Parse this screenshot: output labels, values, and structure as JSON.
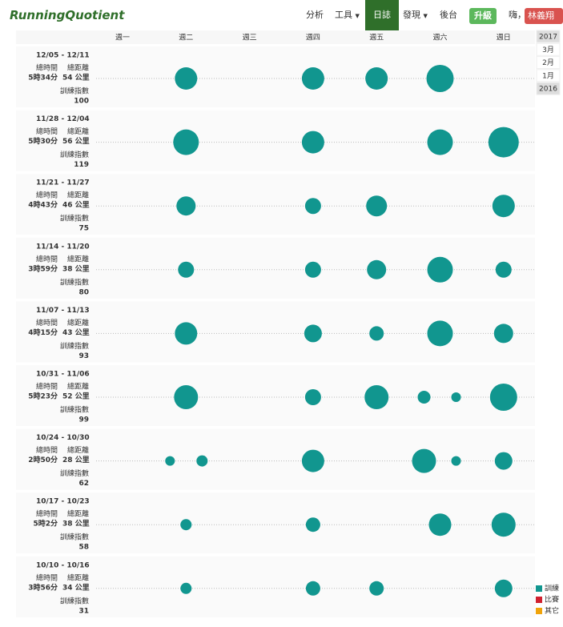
{
  "nav": {
    "logo": "RunningQuotient",
    "items": [
      "分析",
      "工具",
      "日誌",
      "發現",
      "後台"
    ],
    "upgrade": "升級",
    "greeting": "嗨，",
    "user": "林義翔"
  },
  "weekdays": [
    "週一",
    "週二",
    "週三",
    "週四",
    "週五",
    "週六",
    "週日"
  ],
  "labels": {
    "time": "總時間",
    "distance": "總距離",
    "index": "訓練指數"
  },
  "weeks": [
    {
      "range": "12/05 - 12/11",
      "time": "5時34分",
      "distance": "54 公里",
      "index": 100,
      "days": [
        null,
        [
          14
        ],
        null,
        [
          14
        ],
        [
          14
        ],
        [
          17
        ],
        null
      ]
    },
    {
      "range": "11/28 - 12/04",
      "time": "5時30分",
      "distance": "56 公里",
      "index": 119,
      "days": [
        null,
        [
          16
        ],
        null,
        [
          14
        ],
        null,
        [
          16
        ],
        [
          19
        ]
      ]
    },
    {
      "range": "11/21 - 11/27",
      "time": "4時43分",
      "distance": "46 公里",
      "index": 75,
      "days": [
        null,
        [
          12
        ],
        null,
        [
          10
        ],
        [
          13
        ],
        null,
        [
          14
        ]
      ]
    },
    {
      "range": "11/14 - 11/20",
      "time": "3時59分",
      "distance": "38 公里",
      "index": 80,
      "days": [
        null,
        [
          10
        ],
        null,
        [
          10
        ],
        [
          12
        ],
        [
          16
        ],
        [
          10
        ]
      ]
    },
    {
      "range": "11/07 - 11/13",
      "time": "4時15分",
      "distance": "43 公里",
      "index": 93,
      "days": [
        null,
        [
          14
        ],
        null,
        [
          11
        ],
        [
          9
        ],
        [
          16
        ],
        [
          12
        ]
      ]
    },
    {
      "range": "10/31 - 11/06",
      "time": "5時23分",
      "distance": "52 公里",
      "index": 99,
      "days": [
        null,
        [
          15
        ],
        null,
        [
          10
        ],
        [
          15
        ],
        [
          8,
          6
        ],
        [
          17
        ]
      ]
    },
    {
      "range": "10/24 - 10/30",
      "time": "2時50分",
      "distance": "28 公里",
      "index": 62,
      "days": [
        null,
        [
          6,
          7
        ],
        null,
        [
          14
        ],
        null,
        [
          15,
          6
        ],
        [
          11
        ]
      ]
    },
    {
      "range": "10/17 - 10/23",
      "time": "5時2分",
      "distance": "38 公里",
      "index": 58,
      "days": [
        null,
        [
          7
        ],
        null,
        [
          9
        ],
        null,
        [
          14
        ],
        [
          15
        ]
      ]
    },
    {
      "range": "10/10 - 10/16",
      "time": "3時56分",
      "distance": "34 公里",
      "index": 31,
      "days": [
        null,
        [
          7
        ],
        null,
        [
          9
        ],
        [
          9
        ],
        null,
        [
          11
        ]
      ]
    }
  ],
  "sidebar": [
    "2017",
    "3月",
    "2月",
    "1月",
    "2016"
  ],
  "legend": [
    {
      "name": "訓練",
      "color": "#11968f"
    },
    {
      "name": "比賽",
      "color": "#d0202e"
    },
    {
      "name": "其它",
      "color": "#f0a30a"
    }
  ]
}
